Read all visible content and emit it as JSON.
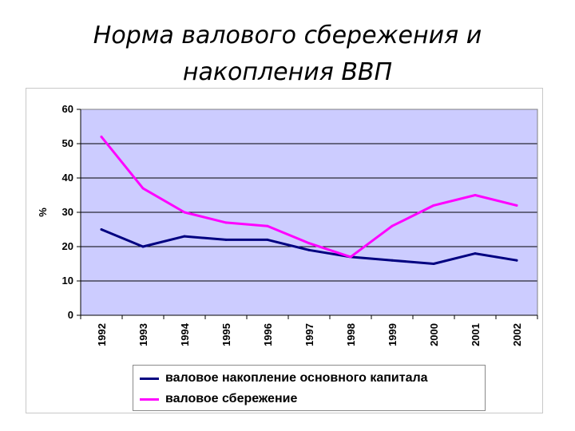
{
  "slide": {
    "title_line1": "Норма валового сбережения и",
    "title_line2": "накопления ВВП"
  },
  "chart_data": {
    "type": "line",
    "title": "",
    "xlabel": "",
    "ylabel": "%",
    "ylim": [
      0,
      60
    ],
    "yticks": [
      0,
      10,
      20,
      30,
      40,
      50,
      60
    ],
    "grid": true,
    "legend_position": "bottom",
    "plot_background": "#ccccff",
    "categories": [
      "1992",
      "1993",
      "1994",
      "1995",
      "1996",
      "1997",
      "1998",
      "1999",
      "2000",
      "2001",
      "2002"
    ],
    "series": [
      {
        "name": "валовое накопление основного капитала",
        "color": "#000080",
        "values": [
          25,
          20,
          23,
          22,
          22,
          19,
          17,
          16,
          15,
          18,
          16
        ]
      },
      {
        "name": "валовое сбережение",
        "color": "#ff00ff",
        "values": [
          52,
          37,
          30,
          27,
          26,
          21,
          17,
          26,
          32,
          35,
          32
        ]
      }
    ]
  }
}
